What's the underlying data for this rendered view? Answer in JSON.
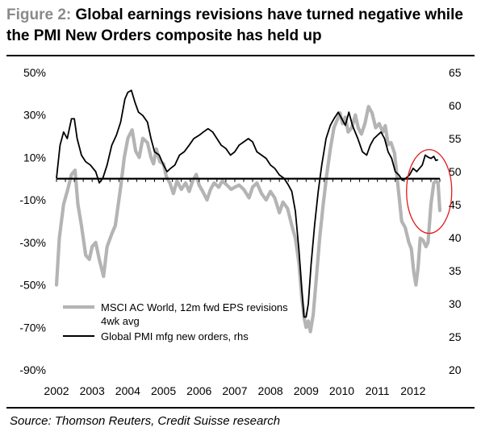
{
  "figure_label": "Figure 2:",
  "title": "Global earnings revisions have turned negative while the PMI New Orders composite has held up",
  "source": "Source: Thomson Reuters, Credit Suisse research",
  "colors": {
    "eps_series": "#b4b4b4",
    "pmi_series": "#000000",
    "highlight_circle": "#e11b1b"
  },
  "chart_data": {
    "type": "line",
    "x_ticks": [
      "2002",
      "2003",
      "2004",
      "2005",
      "2006",
      "2007",
      "2008",
      "2009",
      "2010",
      "2011",
      "2012"
    ],
    "xlim": [
      2002.0,
      2012.75
    ],
    "y_left": {
      "ticks": [
        "50%",
        "30%",
        "10%",
        "-10%",
        "-30%",
        "-50%",
        "-70%",
        "-90%"
      ],
      "ylim": [
        -90,
        50
      ],
      "unit": "%"
    },
    "y_right": {
      "ticks": [
        "65",
        "60",
        "55",
        "50",
        "45",
        "40",
        "35",
        "30",
        "25",
        "20"
      ],
      "ylim": [
        20,
        65
      ]
    },
    "zero_line": 0,
    "annotation": "red circle highlighting 2012 divergence",
    "series": [
      {
        "name": "MSCI AC World, 12m fwd EPS revisions 4wk avg",
        "axis": "left",
        "color": "#b4b4b4",
        "points": [
          [
            2002.0,
            -50
          ],
          [
            2002.08,
            -28
          ],
          [
            2002.2,
            -12
          ],
          [
            2002.3,
            -6
          ],
          [
            2002.42,
            2
          ],
          [
            2002.52,
            4
          ],
          [
            2002.6,
            -12
          ],
          [
            2002.7,
            -22
          ],
          [
            2002.82,
            -36
          ],
          [
            2002.92,
            -38
          ],
          [
            2003.0,
            -32
          ],
          [
            2003.1,
            -30
          ],
          [
            2003.2,
            -38
          ],
          [
            2003.32,
            -46
          ],
          [
            2003.42,
            -32
          ],
          [
            2003.55,
            -26
          ],
          [
            2003.65,
            -22
          ],
          [
            2003.8,
            -4
          ],
          [
            2003.9,
            10
          ],
          [
            2004.0,
            19
          ],
          [
            2004.12,
            23
          ],
          [
            2004.22,
            13
          ],
          [
            2004.32,
            10
          ],
          [
            2004.42,
            19
          ],
          [
            2004.55,
            17
          ],
          [
            2004.65,
            10
          ],
          [
            2004.72,
            7
          ],
          [
            2004.8,
            14
          ],
          [
            2004.9,
            8
          ],
          [
            2005.0,
            7
          ],
          [
            2005.08,
            1
          ],
          [
            2005.18,
            -2
          ],
          [
            2005.28,
            -7
          ],
          [
            2005.38,
            -1
          ],
          [
            2005.5,
            -5
          ],
          [
            2005.62,
            -2
          ],
          [
            2005.72,
            -6
          ],
          [
            2005.82,
            -1
          ],
          [
            2005.92,
            2
          ],
          [
            2006.0,
            -3
          ],
          [
            2006.1,
            -6
          ],
          [
            2006.22,
            -10
          ],
          [
            2006.32,
            -5
          ],
          [
            2006.42,
            -2
          ],
          [
            2006.55,
            -4
          ],
          [
            2006.65,
            -1
          ],
          [
            2006.78,
            -3
          ],
          [
            2006.9,
            -5
          ],
          [
            2007.0,
            -4
          ],
          [
            2007.12,
            -3
          ],
          [
            2007.25,
            -5
          ],
          [
            2007.4,
            -9
          ],
          [
            2007.5,
            -4
          ],
          [
            2007.62,
            -2
          ],
          [
            2007.75,
            -7
          ],
          [
            2007.88,
            -10
          ],
          [
            2008.0,
            -6
          ],
          [
            2008.12,
            -9
          ],
          [
            2008.25,
            -16
          ],
          [
            2008.35,
            -11
          ],
          [
            2008.48,
            -14
          ],
          [
            2008.6,
            -22
          ],
          [
            2008.7,
            -28
          ],
          [
            2008.8,
            -40
          ],
          [
            2008.88,
            -56
          ],
          [
            2008.95,
            -66
          ],
          [
            2009.0,
            -70
          ],
          [
            2009.06,
            -67
          ],
          [
            2009.12,
            -72
          ],
          [
            2009.2,
            -64
          ],
          [
            2009.28,
            -48
          ],
          [
            2009.38,
            -28
          ],
          [
            2009.48,
            -12
          ],
          [
            2009.58,
            2
          ],
          [
            2009.68,
            14
          ],
          [
            2009.78,
            24
          ],
          [
            2009.88,
            28
          ],
          [
            2009.95,
            31
          ],
          [
            2010.02,
            26
          ],
          [
            2010.1,
            29
          ],
          [
            2010.18,
            22
          ],
          [
            2010.28,
            24
          ],
          [
            2010.38,
            30
          ],
          [
            2010.46,
            24
          ],
          [
            2010.55,
            21
          ],
          [
            2010.65,
            26
          ],
          [
            2010.75,
            34
          ],
          [
            2010.85,
            31
          ],
          [
            2010.95,
            24
          ],
          [
            2011.05,
            26
          ],
          [
            2011.15,
            22
          ],
          [
            2011.22,
            25
          ],
          [
            2011.3,
            16
          ],
          [
            2011.38,
            17
          ],
          [
            2011.48,
            12
          ],
          [
            2011.58,
            -4
          ],
          [
            2011.68,
            -20
          ],
          [
            2011.78,
            -23
          ],
          [
            2011.88,
            -30
          ],
          [
            2011.95,
            -33
          ],
          [
            2012.02,
            -44
          ],
          [
            2012.08,
            -50
          ],
          [
            2012.14,
            -42
          ],
          [
            2012.2,
            -28
          ],
          [
            2012.28,
            -29
          ],
          [
            2012.36,
            -32
          ],
          [
            2012.42,
            -30
          ],
          [
            2012.5,
            -12
          ],
          [
            2012.58,
            -2
          ],
          [
            2012.64,
            -1
          ],
          [
            2012.7,
            -2
          ],
          [
            2012.75,
            -15
          ]
        ]
      },
      {
        "name": "Global PMI mfg new orders, rhs",
        "axis": "right",
        "color": "#000000",
        "points": [
          [
            2002.0,
            49
          ],
          [
            2002.1,
            54
          ],
          [
            2002.2,
            56
          ],
          [
            2002.3,
            55
          ],
          [
            2002.42,
            58
          ],
          [
            2002.5,
            58
          ],
          [
            2002.58,
            55
          ],
          [
            2002.7,
            52.5
          ],
          [
            2002.82,
            51.5
          ],
          [
            2002.95,
            51
          ],
          [
            2003.1,
            50
          ],
          [
            2003.2,
            48.3
          ],
          [
            2003.3,
            49
          ],
          [
            2003.42,
            51
          ],
          [
            2003.55,
            54
          ],
          [
            2003.68,
            55.5
          ],
          [
            2003.8,
            57.5
          ],
          [
            2003.92,
            61
          ],
          [
            2004.0,
            62
          ],
          [
            2004.1,
            62.3
          ],
          [
            2004.2,
            60.5
          ],
          [
            2004.3,
            59
          ],
          [
            2004.42,
            58.5
          ],
          [
            2004.55,
            57.5
          ],
          [
            2004.65,
            55
          ],
          [
            2004.75,
            53
          ],
          [
            2004.88,
            52.5
          ],
          [
            2005.0,
            51
          ],
          [
            2005.1,
            50
          ],
          [
            2005.2,
            50.5
          ],
          [
            2005.32,
            51
          ],
          [
            2005.45,
            52.5
          ],
          [
            2005.58,
            53
          ],
          [
            2005.72,
            54
          ],
          [
            2005.85,
            55
          ],
          [
            2006.0,
            55.5
          ],
          [
            2006.12,
            56
          ],
          [
            2006.25,
            56.5
          ],
          [
            2006.38,
            56
          ],
          [
            2006.5,
            55
          ],
          [
            2006.62,
            54
          ],
          [
            2006.75,
            53.5
          ],
          [
            2006.88,
            52.5
          ],
          [
            2007.0,
            53
          ],
          [
            2007.12,
            54
          ],
          [
            2007.25,
            54.5
          ],
          [
            2007.38,
            55
          ],
          [
            2007.5,
            54.5
          ],
          [
            2007.62,
            53
          ],
          [
            2007.75,
            52.5
          ],
          [
            2007.88,
            52
          ],
          [
            2008.0,
            51
          ],
          [
            2008.12,
            50.5
          ],
          [
            2008.25,
            49.5
          ],
          [
            2008.38,
            49
          ],
          [
            2008.5,
            48
          ],
          [
            2008.6,
            47
          ],
          [
            2008.7,
            44
          ],
          [
            2008.8,
            38
          ],
          [
            2008.88,
            32
          ],
          [
            2008.94,
            28
          ],
          [
            2009.0,
            28
          ],
          [
            2009.06,
            30
          ],
          [
            2009.14,
            36
          ],
          [
            2009.24,
            42
          ],
          [
            2009.34,
            47
          ],
          [
            2009.44,
            51
          ],
          [
            2009.56,
            55
          ],
          [
            2009.68,
            57
          ],
          [
            2009.78,
            58
          ],
          [
            2009.9,
            59
          ],
          [
            2010.0,
            58
          ],
          [
            2010.1,
            57
          ],
          [
            2010.2,
            59
          ],
          [
            2010.3,
            57
          ],
          [
            2010.45,
            55
          ],
          [
            2010.58,
            53
          ],
          [
            2010.7,
            52.5
          ],
          [
            2010.8,
            54
          ],
          [
            2010.9,
            55
          ],
          [
            2011.0,
            55.5
          ],
          [
            2011.1,
            56
          ],
          [
            2011.2,
            55
          ],
          [
            2011.3,
            53
          ],
          [
            2011.4,
            52
          ],
          [
            2011.5,
            50
          ],
          [
            2011.6,
            49.5
          ],
          [
            2011.7,
            48.7
          ],
          [
            2011.8,
            49
          ],
          [
            2011.9,
            49.5
          ],
          [
            2012.0,
            50.5
          ],
          [
            2012.1,
            50
          ],
          [
            2012.18,
            50.5
          ],
          [
            2012.26,
            51
          ],
          [
            2012.34,
            52.5
          ],
          [
            2012.42,
            52.2
          ],
          [
            2012.5,
            52
          ],
          [
            2012.58,
            52.3
          ],
          [
            2012.64,
            51.7
          ],
          [
            2012.7,
            51.8
          ]
        ]
      }
    ],
    "legend_position": "bottom-left"
  }
}
